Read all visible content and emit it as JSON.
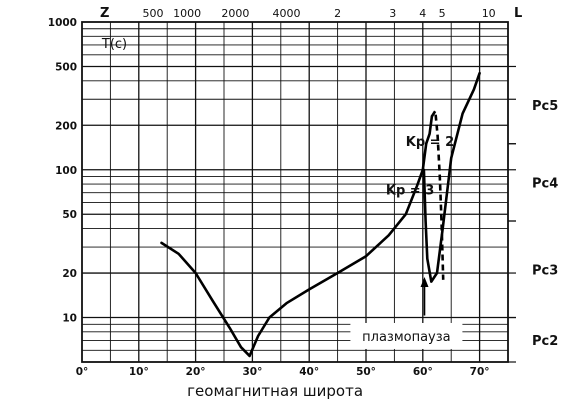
{
  "chart_data": {
    "type": "line",
    "xlabel": "геомагнитная широта",
    "ylabel": "T(c)",
    "xscale": "linear",
    "yscale": "log",
    "xlim": [
      0,
      75
    ],
    "ylim": [
      5,
      1000
    ],
    "x_ticks": [
      "0°",
      "10°",
      "20°",
      "30°",
      "40°",
      "50°",
      "60°",
      "70°"
    ],
    "y_ticks": [
      {
        "label": "1000",
        "value": 1000
      },
      {
        "label": "500",
        "value": 500
      },
      {
        "label": "200",
        "value": 200
      },
      {
        "label": "100",
        "value": 100
      },
      {
        "label": "50",
        "value": 50
      },
      {
        "label": "20",
        "value": 20
      },
      {
        "label": "10",
        "value": 10
      }
    ],
    "top_axis": {
      "left_label": "Z",
      "right_label": "L",
      "ticks": [
        {
          "label": "500",
          "lat": 12.5
        },
        {
          "label": "1000",
          "lat": 18.5
        },
        {
          "label": "2000",
          "lat": 27.0
        },
        {
          "label": "4000",
          "lat": 36.0
        },
        {
          "label": "2",
          "lat": 45.0
        },
        {
          "label": "3",
          "lat": 54.7
        },
        {
          "label": "4",
          "lat": 60.0
        },
        {
          "label": "5",
          "lat": 63.4
        },
        {
          "label": "10",
          "lat": 71.6
        }
      ]
    },
    "bands": [
      {
        "label": "Pc5",
        "lines": [
          500,
          300,
          150
        ]
      },
      {
        "label": "Pc4",
        "lines": [
          150,
          100,
          45
        ]
      },
      {
        "label": "Pc3",
        "lines": [
          45,
          20,
          10
        ]
      },
      {
        "label": "Pc2",
        "lines": [
          10,
          5
        ]
      }
    ],
    "series": [
      {
        "name": "",
        "style": "solid",
        "points": [
          [
            14,
            32
          ],
          [
            17,
            27
          ],
          [
            20,
            20
          ],
          [
            23,
            13
          ],
          [
            26,
            8.5
          ],
          [
            28,
            6.3
          ],
          [
            29.5,
            5.5
          ],
          [
            31,
            7.5
          ],
          [
            33,
            10
          ],
          [
            36,
            12.5
          ],
          [
            40,
            15.5
          ],
          [
            45,
            20
          ],
          [
            50,
            26
          ],
          [
            54,
            36
          ],
          [
            57,
            50
          ],
          [
            59,
            78
          ],
          [
            60,
            100
          ],
          [
            60.6,
            150
          ]
        ]
      },
      {
        "name": "",
        "style": "solid",
        "points": [
          [
            60.6,
            150
          ],
          [
            61.2,
            175
          ],
          [
            61.6,
            230
          ]
        ]
      },
      {
        "name": "",
        "style": "solid",
        "points": [
          [
            60.2,
            100
          ],
          [
            60.5,
            45
          ],
          [
            60.8,
            25
          ],
          [
            61.5,
            17.5
          ],
          [
            62.5,
            20
          ],
          [
            63.5,
            40
          ],
          [
            65,
            120
          ],
          [
            67,
            240
          ],
          [
            69,
            350
          ],
          [
            70,
            450
          ]
        ]
      },
      {
        "name": "",
        "style": "dashed",
        "points": [
          [
            61.6,
            230
          ],
          [
            62.2,
            250
          ],
          [
            62.6,
            170
          ],
          [
            63,
            90
          ],
          [
            63.3,
            45
          ],
          [
            63.5,
            24
          ],
          [
            63.6,
            18
          ]
        ]
      }
    ],
    "annotations": [
      {
        "text": "Kp = 2",
        "x": 57,
        "y": 145
      },
      {
        "text": "Kp = 3",
        "x": 53.5,
        "y": 68
      },
      {
        "text": "плазмопауза",
        "x": 55,
        "y": 7.5,
        "boxed": true,
        "arrow_to_lat": 60.3
      }
    ],
    "grid": true,
    "legend": "none"
  }
}
